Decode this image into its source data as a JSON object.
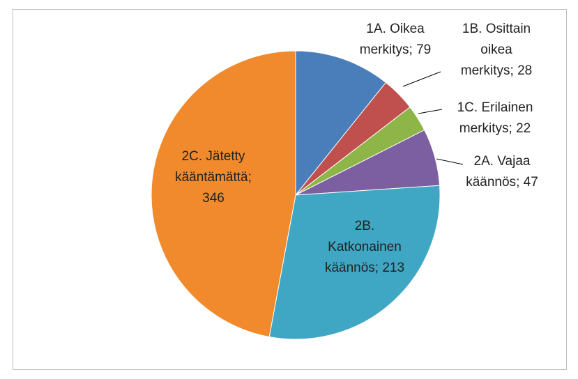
{
  "chart_data": {
    "type": "pie",
    "categories": [
      "1A. Oikea merkitys",
      "1B. Osittain oikea merkitys",
      "1C. Erilainen merkitys",
      "2A. Vajaa käännös",
      "2B. Katkonainen käännös",
      "2C. Jätetty kääntämättä"
    ],
    "values": [
      79,
      28,
      22,
      47,
      213,
      346
    ],
    "colors": [
      "#4a7ebb",
      "#c0504d",
      "#8db547",
      "#7c5fa0",
      "#3fa6c4",
      "#f08a2c"
    ],
    "label_separator": "; "
  }
}
